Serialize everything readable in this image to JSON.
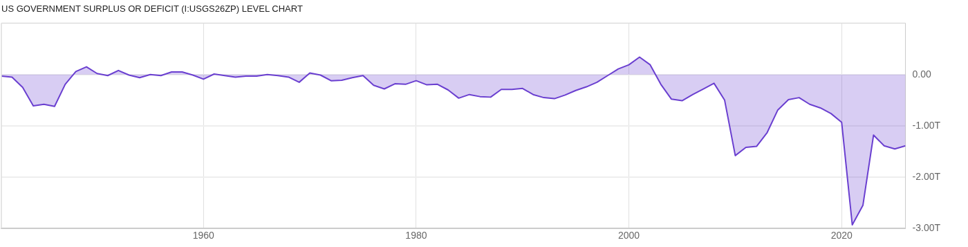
{
  "chart_data": {
    "type": "area",
    "title": "US GOVERNMENT SURPLUS OR DEFICIT (I:USGS26ZP) LEVEL CHART",
    "x": [
      1941,
      1942,
      1943,
      1944,
      1945,
      1946,
      1947,
      1948,
      1949,
      1950,
      1951,
      1952,
      1953,
      1954,
      1955,
      1956,
      1957,
      1958,
      1959,
      1960,
      1961,
      1962,
      1963,
      1964,
      1965,
      1966,
      1967,
      1968,
      1969,
      1970,
      1971,
      1972,
      1973,
      1974,
      1975,
      1976,
      1977,
      1978,
      1979,
      1980,
      1981,
      1982,
      1983,
      1984,
      1985,
      1986,
      1987,
      1988,
      1989,
      1990,
      1991,
      1992,
      1993,
      1994,
      1995,
      1996,
      1997,
      1998,
      1999,
      2000,
      2001,
      2002,
      2003,
      2004,
      2005,
      2006,
      2007,
      2008,
      2009,
      2010,
      2011,
      2012,
      2013,
      2014,
      2015,
      2016,
      2017,
      2018,
      2019,
      2020,
      2021,
      2022,
      2023,
      2024,
      2025,
      2026
    ],
    "series": [
      {
        "color": "#6a3fd0",
        "values": [
          -0.03,
          -0.05,
          -0.25,
          -0.61,
          -0.58,
          -0.62,
          -0.19,
          0.06,
          0.15,
          0.02,
          -0.02,
          0.08,
          -0.01,
          -0.06,
          0.0,
          -0.02,
          0.05,
          0.05,
          -0.01,
          -0.09,
          0.01,
          -0.02,
          -0.05,
          -0.03,
          -0.03,
          0.0,
          -0.02,
          -0.05,
          -0.15,
          0.03,
          -0.01,
          -0.12,
          -0.11,
          -0.06,
          -0.02,
          -0.21,
          -0.28,
          -0.18,
          -0.19,
          -0.12,
          -0.2,
          -0.19,
          -0.3,
          -0.46,
          -0.39,
          -0.43,
          -0.44,
          -0.29,
          -0.29,
          -0.27,
          -0.39,
          -0.45,
          -0.47,
          -0.4,
          -0.31,
          -0.24,
          -0.15,
          -0.02,
          0.11,
          0.19,
          0.34,
          0.19,
          -0.19,
          -0.48,
          -0.51,
          -0.39,
          -0.28,
          -0.17,
          -0.5,
          -1.58,
          -1.42,
          -1.4,
          -1.13,
          -0.69,
          -0.49,
          -0.45,
          -0.58,
          -0.65,
          -0.76,
          -0.93,
          -2.93,
          -2.55,
          -1.18,
          -1.39,
          -1.45,
          -1.39
        ]
      }
    ],
    "xlim": [
      1941,
      2026
    ],
    "xticks": [
      1960,
      1980,
      2000,
      2020
    ],
    "ylim": [
      -3,
      1
    ],
    "yticks": [
      {
        "value": 0,
        "label": "0.00"
      },
      {
        "value": -1,
        "label": "-1.00T"
      },
      {
        "value": -2,
        "label": "-2.00T"
      },
      {
        "value": -3,
        "label": "-3.00T"
      }
    ],
    "grid": true,
    "legend": false,
    "marker": "none",
    "line_style": "solid"
  }
}
